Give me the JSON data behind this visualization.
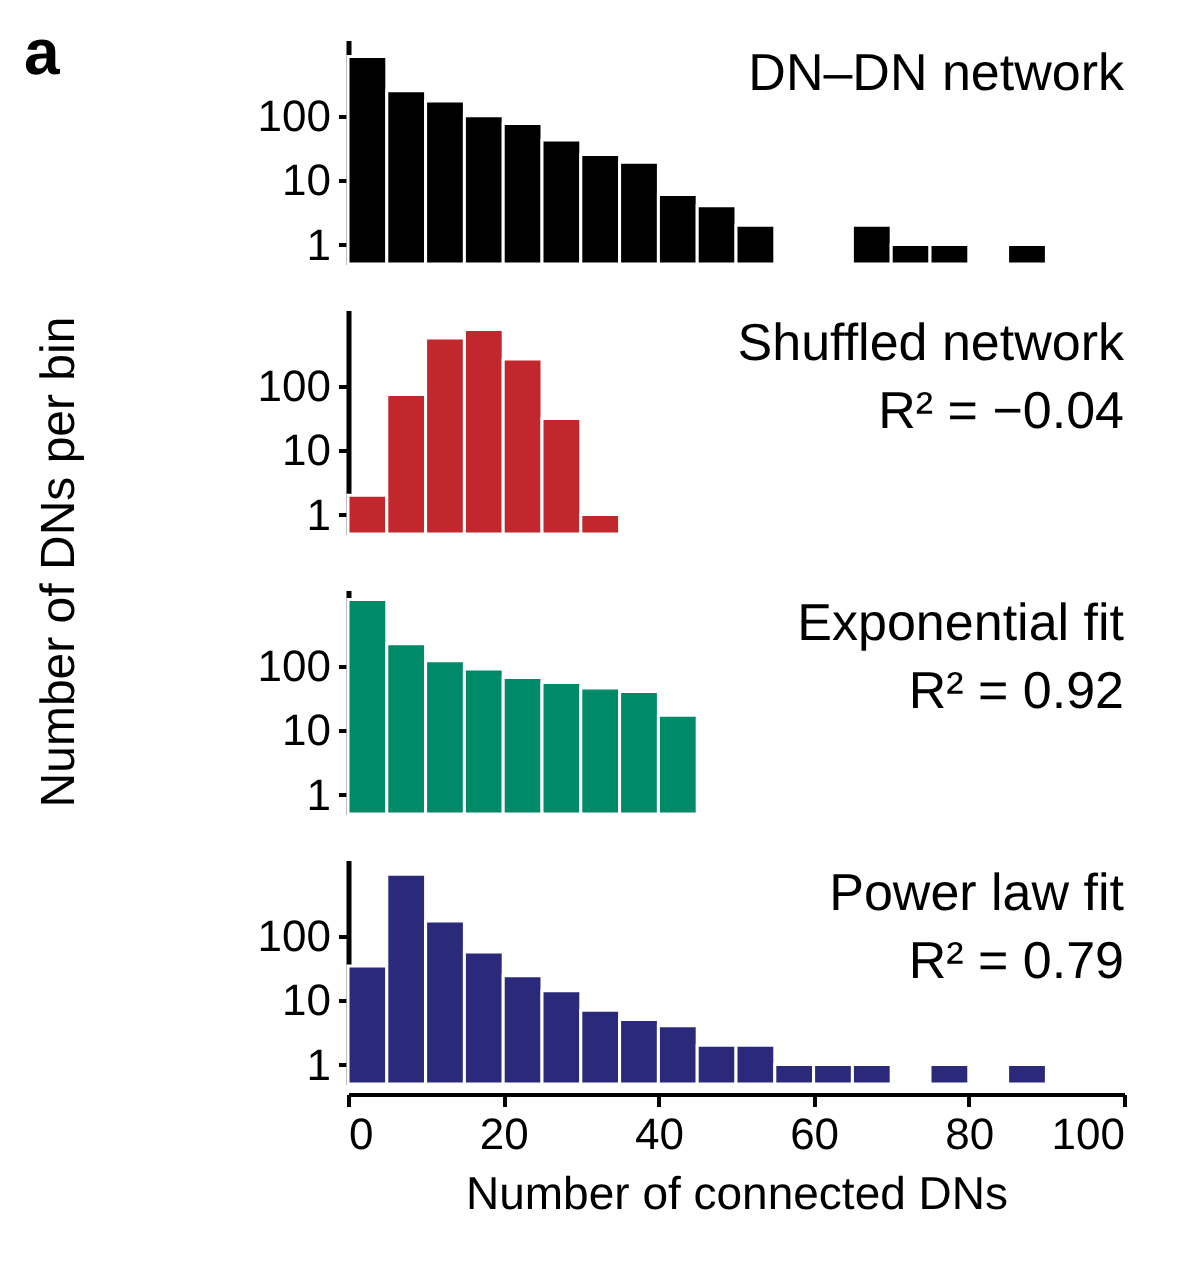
{
  "chart_data": [
    {
      "type": "histogram",
      "title": "DN–DN network",
      "annotations": [
        "a"
      ],
      "ylabel": "Number of DNs per bin",
      "color": "#000000",
      "log": true,
      "tick_labels": "y",
      "xlim": [
        0,
        100
      ],
      "ylim": [
        0.5,
        1500
      ],
      "yticks": [
        1,
        10,
        100
      ],
      "bins": [
        0,
        5,
        10,
        15,
        20,
        25,
        30,
        35,
        40,
        45,
        50,
        55,
        60,
        65,
        70,
        75,
        80,
        85,
        90
      ],
      "values": [
        830,
        245,
        170,
        100,
        76,
        42,
        25,
        19,
        6,
        4,
        2,
        null,
        null,
        2,
        1,
        1,
        null,
        1
      ]
    },
    {
      "type": "histogram",
      "title": "Shuffled network",
      "annotations": [
        "R² = −0.04"
      ],
      "color": "#c1272d",
      "log": true,
      "tick_labels": "y",
      "xlim": [
        0,
        100
      ],
      "ylim": [
        0.5,
        1500
      ],
      "yticks": [
        1,
        10,
        100
      ],
      "bins": [
        0,
        5,
        10,
        15,
        20,
        25,
        30,
        35
      ],
      "values": [
        2,
        73,
        550,
        750,
        260,
        31,
        1
      ]
    },
    {
      "type": "histogram",
      "title": "Exponential fit",
      "annotations": [
        "R² = 0.92"
      ],
      "color": "#008a68",
      "log": true,
      "tick_labels": "y",
      "xlim": [
        0,
        100
      ],
      "ylim": [
        0.5,
        1500
      ],
      "yticks": [
        1,
        10,
        100
      ],
      "bins": [
        0,
        5,
        10,
        15,
        20,
        25,
        30,
        35,
        40,
        45
      ],
      "values": [
        1070,
        220,
        120,
        89,
        66,
        55,
        45,
        40,
        17
      ]
    },
    {
      "type": "histogram",
      "title": "Power law fit",
      "annotations": [
        "R² = 0.79"
      ],
      "xlabel": "Number of connected DNs",
      "color": "#2b2a7a",
      "log": true,
      "xlim": [
        0,
        100
      ],
      "ylim": [
        0.5,
        1500
      ],
      "xticks": [
        0,
        20,
        40,
        60,
        80,
        100
      ],
      "yticks": [
        1,
        10,
        100
      ],
      "bins": [
        0,
        5,
        10,
        15,
        20,
        25,
        30,
        35,
        40,
        45,
        50,
        55,
        60,
        65,
        70,
        75,
        80,
        85,
        90
      ],
      "values": [
        34,
        900,
        170,
        56,
        24,
        14,
        7,
        5,
        4,
        2,
        2,
        1,
        1,
        1,
        null,
        1,
        null,
        1
      ]
    }
  ]
}
